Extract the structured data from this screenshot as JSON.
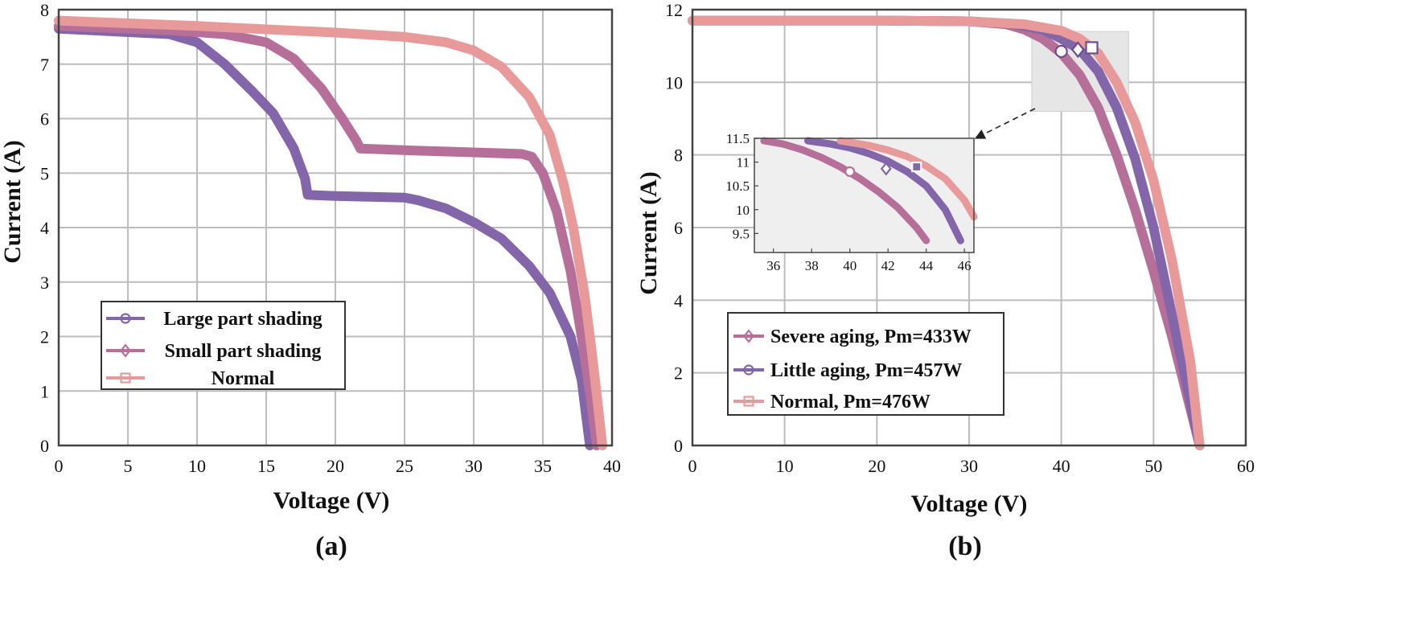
{
  "chart_data": [
    {
      "type": "line",
      "caption": "(a)",
      "xlabel": "Voltage (V)",
      "ylabel": "Current (A)",
      "xlim": [
        0,
        40
      ],
      "ylim": [
        0,
        8
      ],
      "xticks": [
        "0",
        "5",
        "10",
        "15",
        "20",
        "25",
        "30",
        "35",
        "40"
      ],
      "yticks": [
        "0",
        "1",
        "2",
        "3",
        "4",
        "5",
        "6",
        "7",
        "8"
      ],
      "grid": true,
      "legend_position": "bottom-center",
      "series": [
        {
          "name": "Large part shading",
          "color": "#8366a9",
          "marker": "circle",
          "x": [
            0,
            8,
            10,
            12,
            14,
            15.5,
            17,
            17.8,
            18,
            20,
            25,
            26,
            28,
            30,
            32,
            34,
            35.5,
            37,
            37.8,
            38.2,
            38.4
          ],
          "y": [
            7.65,
            7.55,
            7.4,
            7.0,
            6.5,
            6.1,
            5.45,
            4.9,
            4.6,
            4.58,
            4.55,
            4.5,
            4.35,
            4.1,
            3.8,
            3.3,
            2.8,
            2.0,
            1.2,
            0.4,
            0
          ]
        },
        {
          "name": "Small part shading",
          "color": "#b66f98",
          "marker": "diamond",
          "x": [
            0,
            8,
            12,
            15,
            17,
            19,
            20.5,
            21.5,
            21.8,
            25,
            30,
            33.5,
            34.2,
            35,
            36,
            37,
            37.8,
            38.5,
            38.9
          ],
          "y": [
            7.7,
            7.62,
            7.55,
            7.4,
            7.1,
            6.55,
            6.0,
            5.6,
            5.45,
            5.42,
            5.38,
            5.35,
            5.3,
            5.0,
            4.3,
            3.2,
            2.0,
            0.8,
            0
          ]
        },
        {
          "name": "Normal",
          "color": "#e89999",
          "marker": "square",
          "x": [
            0,
            10,
            20,
            25,
            28,
            30,
            32,
            34,
            35.5,
            36.5,
            37.2,
            38,
            38.5,
            39,
            39.3
          ],
          "y": [
            7.8,
            7.7,
            7.58,
            7.5,
            7.4,
            7.25,
            6.95,
            6.4,
            5.7,
            4.8,
            4.0,
            2.8,
            1.8,
            0.7,
            0
          ]
        }
      ]
    },
    {
      "type": "line",
      "caption": "(b)",
      "xlabel": "Voltage (V)",
      "ylabel": "Current (A)",
      "xlim": [
        0,
        60
      ],
      "ylim": [
        0,
        12
      ],
      "xticks": [
        "0",
        "10",
        "20",
        "30",
        "40",
        "50",
        "60"
      ],
      "yticks": [
        "0",
        "2",
        "4",
        "6",
        "8",
        "10",
        "12"
      ],
      "grid": true,
      "legend_position": "bottom-left",
      "series": [
        {
          "name": "Severe aging, Pm=433W",
          "color": "#b66f98",
          "marker": "diamond",
          "x": [
            0,
            20,
            30,
            34,
            36,
            38,
            40,
            42,
            44,
            46,
            48,
            50,
            52,
            54,
            55
          ],
          "y": [
            11.7,
            11.7,
            11.68,
            11.6,
            11.45,
            11.2,
            10.8,
            10.2,
            9.3,
            8.0,
            6.5,
            4.8,
            3.0,
            1.0,
            0
          ]
        },
        {
          "name": "Little aging, Pm=457W",
          "color": "#8366a9",
          "marker": "circle",
          "x": [
            0,
            20,
            30,
            35,
            38,
            40,
            42,
            44,
            46,
            48,
            50,
            52,
            54,
            55
          ],
          "y": [
            11.7,
            11.7,
            11.68,
            11.6,
            11.45,
            11.2,
            10.9,
            10.3,
            9.3,
            7.9,
            6.0,
            3.6,
            1.2,
            0
          ]
        },
        {
          "name": "Normal, Pm=476W",
          "color": "#e89999",
          "marker": "square",
          "x": [
            0,
            20,
            30,
            36,
            40,
            42,
            44,
            46,
            48,
            50,
            52,
            54,
            55
          ],
          "y": [
            11.7,
            11.7,
            11.68,
            11.6,
            11.42,
            11.2,
            10.8,
            10.0,
            8.9,
            7.3,
            5.1,
            2.3,
            0
          ]
        }
      ],
      "mpp_markers": [
        {
          "series": "Little aging, Pm=457W",
          "shape": "circle",
          "x": 40.0,
          "y": 10.85
        },
        {
          "series": "Severe aging, Pm=433W",
          "shape": "diamond",
          "x": 41.8,
          "y": 10.9
        },
        {
          "series": "Normal, Pm=476W",
          "shape": "square",
          "x": 43.3,
          "y": 10.95
        }
      ],
      "inset": {
        "xlim": [
          35,
          46.5
        ],
        "ylim": [
          9.1,
          11.5
        ],
        "xticks": [
          "36",
          "38",
          "40",
          "42",
          "44",
          "46"
        ],
        "yticks": [
          "9.5",
          "10",
          "10.5",
          "11",
          "11.5"
        ],
        "zoom_region": {
          "xlim": [
            36.8,
            47.3
          ],
          "ylim": [
            9.2,
            11.4
          ]
        },
        "series": [
          {
            "name": "Severe aging, Pm=433W",
            "color": "#b66f98",
            "x": [
              35.5,
              36.5,
              37.5,
              38.5,
              39.5,
              40.5,
              41.5,
              42.5,
              43.5,
              44
            ],
            "y": [
              11.45,
              11.38,
              11.26,
              11.1,
              10.9,
              10.66,
              10.38,
              10.05,
              9.62,
              9.35
            ]
          },
          {
            "name": "Little aging, Pm=457W",
            "color": "#8366a9",
            "x": [
              37.8,
              39,
              40,
              41,
              42,
              43,
              44,
              45,
              45.8
            ],
            "y": [
              11.45,
              11.38,
              11.3,
              11.18,
              11.02,
              10.8,
              10.5,
              10.0,
              9.35
            ]
          },
          {
            "name": "Normal, Pm=476W",
            "color": "#e89999",
            "x": [
              39.5,
              41,
              42,
              43,
              44,
              45,
              46,
              46.5
            ],
            "y": [
              11.45,
              11.35,
              11.25,
              11.12,
              10.92,
              10.65,
              10.2,
              9.85
            ]
          }
        ],
        "markers": [
          {
            "shape": "circle",
            "color": "#b66f98",
            "x": 40.0,
            "y": 10.8
          },
          {
            "shape": "diamond",
            "color": "#8366a9",
            "x": 41.9,
            "y": 10.86
          },
          {
            "shape": "square",
            "color": "#b66f98",
            "x": 43.5,
            "y": 10.9
          }
        ]
      }
    }
  ]
}
